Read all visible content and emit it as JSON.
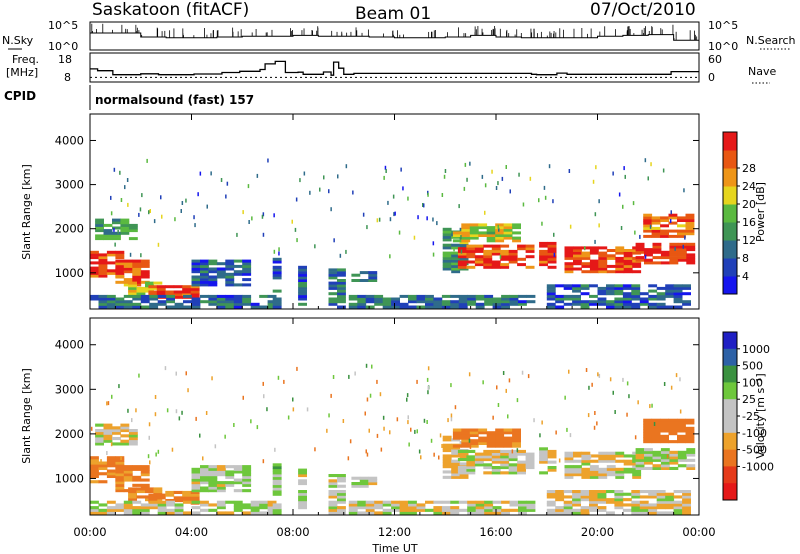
{
  "header": {
    "station": "Saskatoon (fitACF)",
    "beam": "Beam 01",
    "date": "07/Oct/2010"
  },
  "left_labels": {
    "nsky": "N.Sky",
    "freq_line1": "Freq.",
    "freq_line2": "[MHz]",
    "cpid": "CPID"
  },
  "right_labels": {
    "nsearch": "N.Search",
    "nave": "Nave"
  },
  "cpid_text": "normalsound (fast) 157",
  "colors": {
    "power": [
      "#1515ee",
      "#2040b8",
      "#2f6b8a",
      "#3f9555",
      "#5ab940",
      "#e6d51e",
      "#ee9518",
      "#e85712",
      "#e51818"
    ],
    "velocity": [
      "#2020c4",
      "#2d61a6",
      "#3a9140",
      "#6ec73c",
      "#c4c4c4",
      "#c4c4c4",
      "#eda22c",
      "#ea7520",
      "#e53a1a",
      "#e51818"
    ]
  },
  "chart_data": [
    {
      "type": "line",
      "panel": "noise",
      "series": [
        {
          "name": "N.Sky",
          "values": [
            1.5,
            1.5,
            1.0,
            0.9,
            0.9,
            1.0,
            1.1,
            1.1,
            1.2,
            1.1,
            1.1,
            1.0,
            0.9,
            0.9,
            1.0,
            1.2,
            1.0,
            0.9,
            0.9,
            0.9,
            1.1,
            1.2,
            1.3,
            0.6
          ]
        }
      ],
      "x": [
        "00:00",
        "01:00",
        "02:00",
        "03:00",
        "04:00",
        "05:00",
        "06:00",
        "07:00",
        "08:00",
        "09:00",
        "10:00",
        "11:00",
        "12:00",
        "13:00",
        "14:00",
        "15:00",
        "16:00",
        "17:00",
        "18:00",
        "19:00",
        "20:00",
        "21:00",
        "22:00",
        "23:00"
      ],
      "left_ticks": [
        "10^5",
        "10^0"
      ],
      "right_ticks": [
        "10^5",
        "10^0"
      ]
    },
    {
      "type": "line",
      "panel": "frequency",
      "left_ticks": [
        "18",
        "8"
      ],
      "right_ticks": [
        "60",
        "0"
      ],
      "frequency_mhz": [
        [
          0.0,
          13.6
        ],
        [
          0.3,
          12.6
        ],
        [
          0.9,
          10.4
        ],
        [
          2.0,
          10.9
        ],
        [
          2.7,
          10.4
        ],
        [
          4.1,
          10.8
        ],
        [
          5.2,
          11.6
        ],
        [
          5.9,
          12.3
        ],
        [
          6.7,
          13.3
        ],
        [
          6.9,
          16.4
        ],
        [
          7.3,
          17.8
        ],
        [
          7.7,
          11.6
        ],
        [
          8.0,
          11.6
        ],
        [
          8.2,
          11.8
        ],
        [
          8.4,
          10.6
        ],
        [
          8.6,
          10.6
        ],
        [
          9.2,
          11.9
        ],
        [
          9.5,
          10.1
        ],
        [
          9.6,
          17.4
        ],
        [
          9.8,
          14.0
        ],
        [
          10.0,
          10.6
        ],
        [
          10.4,
          11.1
        ],
        [
          11.0,
          11.1
        ],
        [
          12.5,
          11.1
        ],
        [
          14.0,
          11.1
        ],
        [
          15.5,
          11.1
        ],
        [
          16.5,
          11.1
        ],
        [
          17.4,
          10.6
        ],
        [
          17.55,
          10.6
        ],
        [
          17.6,
          10.4
        ],
        [
          18.3,
          10.4
        ],
        [
          18.4,
          11.3
        ],
        [
          18.8,
          10.6
        ],
        [
          20.0,
          10.6
        ],
        [
          21.0,
          10.6
        ],
        [
          22.0,
          10.6
        ],
        [
          22.8,
          10.6
        ],
        [
          22.9,
          12.1
        ],
        [
          23.5,
          12.1
        ],
        [
          24.0,
          12.1
        ]
      ],
      "nave_level": 12
    },
    {
      "type": "heatmap",
      "panel": "power",
      "xlabel": "",
      "ylabel": "Slant Range [km]",
      "x_ticks": [
        "00:00",
        "04:00",
        "08:00",
        "12:00",
        "16:00",
        "20:00",
        "00:00"
      ],
      "y_ticks": [
        "1000",
        "2000",
        "3000",
        "4000"
      ],
      "xlim_hours": [
        0,
        24
      ],
      "ylim_km": [
        180,
        4600
      ],
      "colorbar_label": "Power [dB]",
      "colorbar_ticks": [
        "4",
        "8",
        "12",
        "16",
        "20",
        "24",
        "28"
      ],
      "colorbar_range": [
        0,
        30
      ],
      "regions": [
        {
          "t0": 0.0,
          "t1": 1.3,
          "r0": 900,
          "r1": 1450,
          "power": 27,
          "velocity": -110
        },
        {
          "t0": 0.2,
          "t1": 1.7,
          "r0": 1750,
          "r1": 2200,
          "power": 12,
          "velocity": 0
        },
        {
          "t0": 1.0,
          "t1": 2.2,
          "r0": 700,
          "r1": 1300,
          "power": 24,
          "velocity": -120
        },
        {
          "t0": 1.5,
          "t1": 2.8,
          "r0": 500,
          "r1": 800,
          "power": 18,
          "velocity": -100
        },
        {
          "t0": 2.3,
          "t1": 4.3,
          "r0": 420,
          "r1": 700,
          "power": 28,
          "velocity": -120
        },
        {
          "t0": 4.0,
          "t1": 6.3,
          "r0": 700,
          "r1": 1250,
          "power": 7,
          "velocity": 30
        },
        {
          "t0": 0.0,
          "t1": 7.0,
          "r0": 200,
          "r1": 450,
          "power": 8,
          "velocity": 0
        },
        {
          "t0": 7.2,
          "t1": 7.5,
          "r0": 200,
          "r1": 1300,
          "power": 6,
          "velocity": 50
        },
        {
          "t0": 8.2,
          "t1": 8.4,
          "r0": 200,
          "r1": 1200,
          "power": 7,
          "velocity": 0
        },
        {
          "t0": 9.4,
          "t1": 9.8,
          "r0": 200,
          "r1": 1100,
          "power": 8,
          "velocity": 0
        },
        {
          "t0": 10.3,
          "t1": 11.2,
          "r0": 800,
          "r1": 1000,
          "power": 10,
          "velocity": 0
        },
        {
          "t0": 10.2,
          "t1": 17.4,
          "r0": 200,
          "r1": 500,
          "power": 8,
          "velocity": 0
        },
        {
          "t0": 13.9,
          "t1": 14.6,
          "r0": 1000,
          "r1": 2000,
          "power": 12,
          "velocity": -40
        },
        {
          "t0": 14.5,
          "t1": 17.4,
          "r0": 1100,
          "r1": 1600,
          "power": 26,
          "velocity": 0
        },
        {
          "t0": 14.3,
          "t1": 16.8,
          "r0": 1700,
          "r1": 2100,
          "power": 18,
          "velocity": -150
        },
        {
          "t0": 17.7,
          "t1": 18.3,
          "r0": 1100,
          "r1": 1700,
          "power": 27,
          "velocity": 0
        },
        {
          "t0": 18.7,
          "t1": 21.5,
          "r0": 1000,
          "r1": 1600,
          "power": 26,
          "velocity": 0
        },
        {
          "t0": 21.5,
          "t1": 23.5,
          "r0": 1200,
          "r1": 1650,
          "power": 27,
          "velocity": 10
        },
        {
          "t0": 21.8,
          "t1": 23.5,
          "r0": 1800,
          "r1": 2300,
          "power": 24,
          "velocity": -200
        },
        {
          "t0": 18.0,
          "t1": 23.6,
          "r0": 200,
          "r1": 700,
          "power": 7,
          "velocity": -20
        }
      ]
    },
    {
      "type": "heatmap",
      "panel": "velocity",
      "xlabel": "Time UT",
      "ylabel": "Slant Range [km]",
      "x_ticks": [
        "00:00",
        "04:00",
        "08:00",
        "12:00",
        "16:00",
        "20:00",
        "00:00"
      ],
      "y_ticks": [
        "1000",
        "2000",
        "3000",
        "4000"
      ],
      "xlim_hours": [
        0,
        24
      ],
      "ylim_km": [
        180,
        4600
      ],
      "colorbar_label": "Velocity [m s⁻¹]",
      "colorbar_ticks": [
        "1000",
        "500",
        "100",
        "25",
        "-25",
        "-100",
        "-500",
        "-1000"
      ]
    }
  ]
}
